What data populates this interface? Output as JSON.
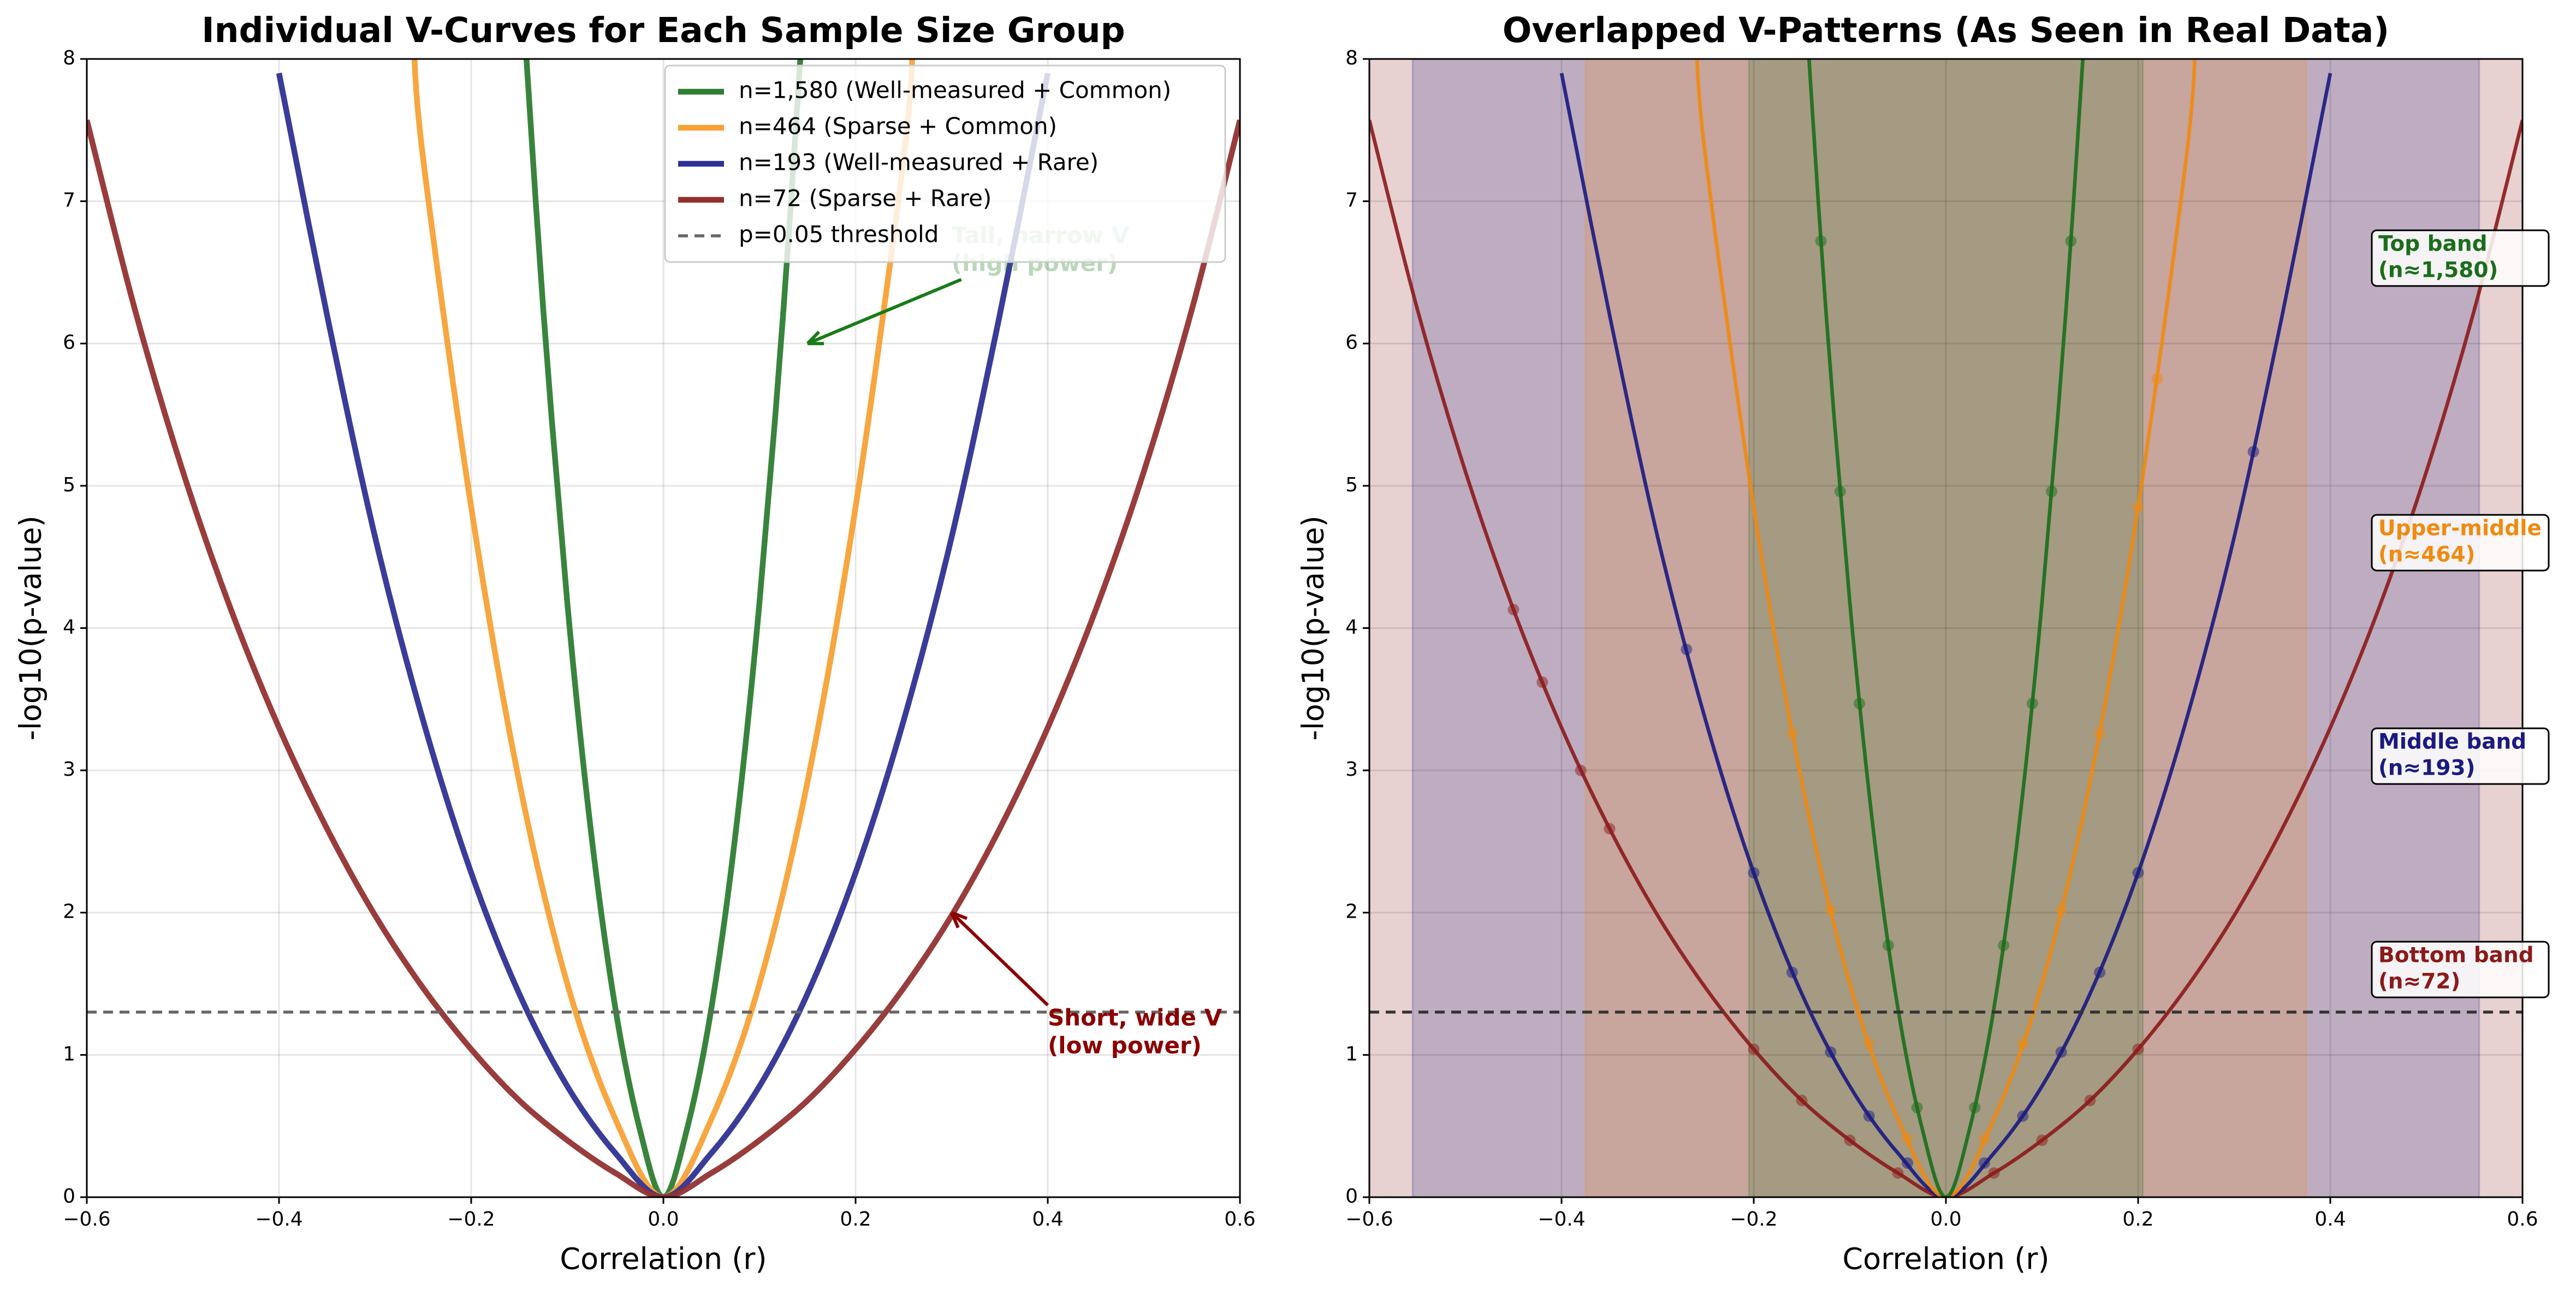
{
  "chart_data": [
    {
      "type": "line",
      "title": "Individual V-Curves for Each Sample Size Group",
      "xlabel": "Correlation (r)",
      "ylabel": "-log10(p-value)",
      "xlim": [
        -0.6,
        0.6
      ],
      "ylim": [
        0,
        8
      ],
      "xticks": [
        {
          "value": -0.6,
          "label": "−0.6"
        },
        {
          "value": -0.4,
          "label": "−0.4"
        },
        {
          "value": -0.2,
          "label": "−0.2"
        },
        {
          "value": 0,
          "label": "0.0"
        },
        0.2,
        0.4,
        0.6
      ],
      "yticks": [
        0,
        1,
        2,
        3,
        4,
        5,
        6,
        7,
        8
      ],
      "grid": true,
      "legend": "upper right",
      "threshold": {
        "value": 1.301,
        "name": "p=0.05 threshold",
        "color": "#666666"
      },
      "series": [
        {
          "name": "n=1,580 (Well-measured + Common)",
          "color": "#2e7d32",
          "x": [
            -0.145,
            -0.125,
            -0.1,
            -0.075,
            -0.05,
            -0.025,
            0,
            0.025,
            0.05,
            0.075,
            0.1,
            0.125,
            0.145
          ],
          "values": [
            8.26,
            6.24,
            4.18,
            2.55,
            1.33,
            0.49,
            0,
            0.49,
            1.33,
            2.55,
            4.18,
            6.24,
            8.26
          ]
        },
        {
          "name": "n=464 (Sparse + Common)",
          "color": "#f7a136",
          "x": [
            -0.26,
            -0.25,
            -0.2,
            -0.15,
            -0.1,
            -0.05,
            0,
            0.05,
            0.1,
            0.15,
            0.2,
            0.25,
            0.26
          ],
          "values": [
            8.15,
            7.3,
            4.85,
            2.92,
            1.5,
            0.55,
            0,
            0.55,
            1.5,
            2.92,
            4.85,
            7.3,
            8.15
          ]
        },
        {
          "name": "n=193 (Well-measured + Rare)",
          "color": "#2e3192",
          "x": [
            -0.4,
            -0.35,
            -0.3,
            -0.25,
            -0.2,
            -0.15,
            -0.1,
            -0.05,
            0,
            0.05,
            0.1,
            0.15,
            0.2,
            0.25,
            0.3,
            0.35,
            0.4
          ],
          "values": [
            7.9,
            6.2,
            4.64,
            3.35,
            2.28,
            1.43,
            0.78,
            0.31,
            0,
            0.31,
            0.78,
            1.43,
            2.28,
            3.35,
            4.64,
            6.2,
            7.9
          ]
        },
        {
          "name": "n=72 (Sparse + Rare)",
          "color": "#933131",
          "x": [
            -0.6,
            -0.55,
            -0.5,
            -0.45,
            -0.4,
            -0.35,
            -0.3,
            -0.25,
            -0.2,
            -0.15,
            -0.1,
            -0.05,
            0,
            0.05,
            0.1,
            0.15,
            0.2,
            0.25,
            0.3,
            0.35,
            0.4,
            0.45,
            0.5,
            0.55,
            0.6
          ],
          "values": [
            7.57,
            6.24,
            5.1,
            4.13,
            3.3,
            2.59,
            1.98,
            1.47,
            1.04,
            0.68,
            0.4,
            0.17,
            0,
            0.17,
            0.4,
            0.68,
            1.04,
            1.47,
            1.98,
            2.59,
            3.3,
            4.13,
            5.1,
            6.24,
            7.57
          ]
        }
      ],
      "annotations": [
        {
          "lines": [
            "Tall, narrow V",
            "(high power)"
          ],
          "color": "#1a7a1a"
        },
        {
          "lines": [
            "Short, wide V",
            "(low power)"
          ],
          "color": "#8b0000"
        }
      ]
    },
    {
      "type": "line",
      "title": "Overlapped V-Patterns (As Seen in Real Data)",
      "xlabel": "Correlation (r)",
      "ylabel": "-log10(p-value)",
      "xlim": [
        -0.6,
        0.6
      ],
      "ylim": [
        0,
        8
      ],
      "xticks": [
        {
          "value": -0.6,
          "label": "−0.6"
        },
        {
          "value": -0.4,
          "label": "−0.4"
        },
        {
          "value": -0.2,
          "label": "−0.2"
        },
        {
          "value": 0,
          "label": "0.0"
        },
        0.2,
        0.4,
        0.6
      ],
      "yticks": [
        0,
        1,
        2,
        3,
        4,
        5,
        6,
        7,
        8
      ],
      "grid": true,
      "threshold": {
        "value": 1.301,
        "color": "#333333"
      },
      "series": [
        {
          "color": "#8b1a1a",
          "band": [
            -0.6,
            0.6
          ],
          "band_label": [
            "Bottom band",
            "(n≈72)"
          ],
          "x": [
            -0.6,
            -0.55,
            -0.5,
            -0.45,
            -0.4,
            -0.35,
            -0.3,
            -0.25,
            -0.2,
            -0.15,
            -0.1,
            -0.05,
            0,
            0.05,
            0.1,
            0.15,
            0.2,
            0.25,
            0.3,
            0.35,
            0.4,
            0.45,
            0.5,
            0.55,
            0.6
          ],
          "values": [
            7.57,
            6.24,
            5.1,
            4.13,
            3.3,
            2.59,
            1.98,
            1.47,
            1.04,
            0.68,
            0.4,
            0.17,
            0,
            0.17,
            0.4,
            0.68,
            1.04,
            1.47,
            1.98,
            2.59,
            3.3,
            4.13,
            5.1,
            6.24,
            7.57
          ],
          "points": {
            "x": [
              -0.45,
              -0.42,
              -0.38,
              -0.35,
              -0.2,
              -0.15,
              -0.1,
              -0.05,
              0.05,
              0.1,
              0.15,
              0.2
            ],
            "values": [
              4.13,
              3.62,
              3.0,
              2.59,
              1.04,
              0.68,
              0.4,
              0.17,
              0.17,
              0.4,
              0.68,
              1.04
            ]
          }
        },
        {
          "color": "#1a1a80",
          "band": [
            -0.555,
            0.555
          ],
          "band_label": [
            "Middle band",
            "(n≈193)"
          ],
          "x": [
            -0.4,
            -0.35,
            -0.3,
            -0.25,
            -0.2,
            -0.15,
            -0.1,
            -0.05,
            0,
            0.05,
            0.1,
            0.15,
            0.2,
            0.25,
            0.3,
            0.35,
            0.4
          ],
          "values": [
            7.9,
            6.2,
            4.64,
            3.35,
            2.28,
            1.43,
            0.78,
            0.31,
            0,
            0.31,
            0.78,
            1.43,
            2.28,
            3.35,
            4.64,
            6.2,
            7.9
          ],
          "points": {
            "x": [
              -0.27,
              -0.2,
              -0.16,
              -0.12,
              -0.08,
              -0.04,
              0.04,
              0.08,
              0.12,
              0.16,
              0.2,
              0.32
            ],
            "values": [
              3.85,
              2.28,
              1.58,
              1.02,
              0.57,
              0.24,
              0.24,
              0.57,
              1.02,
              1.58,
              2.28,
              5.24
            ]
          }
        },
        {
          "color": "#f08a10",
          "band": [
            -0.375,
            0.375
          ],
          "band_label": [
            "Upper-middle",
            "(n≈464)"
          ],
          "x": [
            -0.26,
            -0.25,
            -0.2,
            -0.15,
            -0.1,
            -0.05,
            0,
            0.05,
            0.1,
            0.15,
            0.2,
            0.25,
            0.26
          ],
          "values": [
            8.15,
            7.3,
            4.85,
            2.92,
            1.5,
            0.55,
            0,
            0.55,
            1.5,
            2.92,
            4.85,
            7.3,
            8.15
          ],
          "points": {
            "x": [
              -0.16,
              -0.12,
              -0.08,
              -0.04,
              0.04,
              0.08,
              0.12,
              0.16,
              0.2,
              0.22
            ],
            "values": [
              3.26,
              2.02,
              1.08,
              0.41,
              0.41,
              1.08,
              2.02,
              3.26,
              4.85,
              5.75
            ]
          }
        },
        {
          "color": "#1a6e1a",
          "band": [
            -0.205,
            0.205
          ],
          "band_label": [
            "Top band",
            "(n≈1,580)"
          ],
          "x": [
            -0.145,
            -0.125,
            -0.1,
            -0.075,
            -0.05,
            -0.025,
            0,
            0.025,
            0.05,
            0.075,
            0.1,
            0.125,
            0.145
          ],
          "values": [
            8.26,
            6.24,
            4.18,
            2.55,
            1.33,
            0.49,
            0,
            0.49,
            1.33,
            2.55,
            4.18,
            6.24,
            8.26
          ],
          "points": {
            "x": [
              -0.13,
              -0.11,
              -0.09,
              -0.06,
              -0.03,
              0.03,
              0.06,
              0.09,
              0.11,
              0.13
            ],
            "values": [
              6.72,
              4.96,
              3.47,
              1.77,
              0.63,
              0.63,
              1.77,
              3.47,
              4.96,
              6.72
            ]
          }
        }
      ]
    }
  ]
}
